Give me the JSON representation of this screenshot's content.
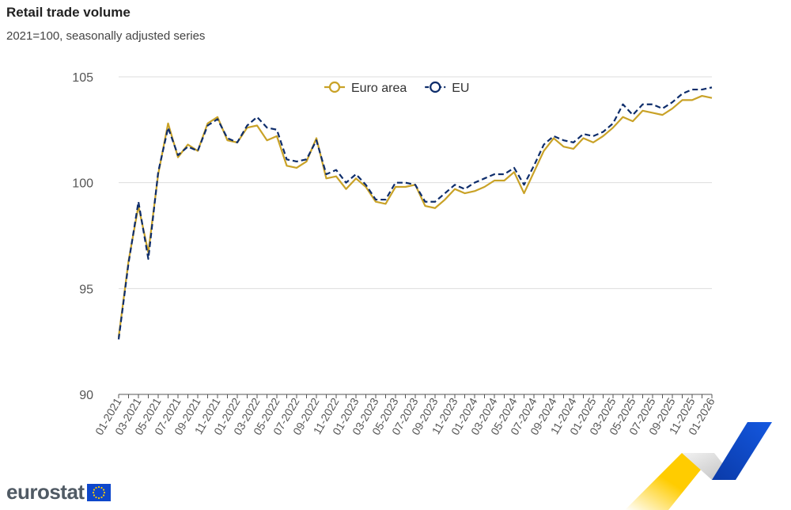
{
  "title": "Retail trade volume",
  "subtitle": "2021=100, seasonally adjusted series",
  "brand": {
    "name": "eurostat",
    "flag_icon": "eu-flag-icon"
  },
  "colors": {
    "euro_area": "#c9a227",
    "eu": "#0e2d6b",
    "grid": "#dddddd",
    "axis_text": "#555555",
    "deco_yellow": "#ffcc00",
    "deco_blue": "#0e47cb",
    "deco_grey": "#cfcfcf"
  },
  "chart_data": {
    "type": "line",
    "title": "Retail trade volume",
    "subtitle": "2021=100, seasonally adjusted series",
    "xlabel": "",
    "ylabel": "",
    "ylim": [
      90,
      105
    ],
    "yticks": [
      90,
      95,
      100,
      105
    ],
    "grid": true,
    "legend_position": "top-center",
    "x": [
      "01-2021",
      "02-2021",
      "03-2021",
      "04-2021",
      "05-2021",
      "06-2021",
      "07-2021",
      "08-2021",
      "09-2021",
      "10-2021",
      "11-2021",
      "12-2021",
      "01-2022",
      "02-2022",
      "03-2022",
      "04-2022",
      "05-2022",
      "06-2022",
      "07-2022",
      "08-2022",
      "09-2022",
      "10-2022",
      "11-2022",
      "12-2022",
      "01-2023",
      "02-2023",
      "03-2023",
      "04-2023",
      "05-2023",
      "06-2023",
      "07-2023",
      "08-2023",
      "09-2023",
      "10-2023",
      "11-2023",
      "12-2023",
      "01-2024",
      "02-2024",
      "03-2024",
      "04-2024",
      "05-2024",
      "06-2024",
      "07-2024",
      "08-2024",
      "09-2024",
      "10-2024",
      "11-2024",
      "12-2024",
      "01-2025",
      "02-2025",
      "03-2025",
      "04-2025",
      "05-2025",
      "06-2025",
      "07-2025",
      "08-2025",
      "09-2025",
      "10-2025",
      "11-2025",
      "12-2025",
      "01-2026"
    ],
    "xtick_labels": [
      "01-2021",
      "03-2021",
      "05-2021",
      "07-2021",
      "09-2021",
      "11-2021",
      "01-2022",
      "03-2022",
      "05-2022",
      "07-2022",
      "09-2022",
      "11-2022",
      "01-2023",
      "03-2023",
      "05-2023",
      "07-2023",
      "09-2023",
      "11-2023",
      "01-2024",
      "03-2024",
      "05-2024",
      "07-2024",
      "09-2024",
      "11-2024",
      "01-2025",
      "03-2025",
      "05-2025",
      "07-2025",
      "09-2025",
      "11-2025",
      "01-2026"
    ],
    "series": [
      {
        "name": "Euro area",
        "style": "solid",
        "values": [
          92.7,
          96.3,
          98.9,
          96.7,
          100.4,
          102.8,
          101.2,
          101.8,
          101.5,
          102.8,
          103.1,
          102.0,
          101.9,
          102.6,
          102.7,
          102.0,
          102.2,
          100.8,
          100.7,
          101.0,
          102.1,
          100.2,
          100.3,
          99.7,
          100.2,
          99.8,
          99.1,
          99.0,
          99.8,
          99.8,
          99.9,
          98.9,
          98.8,
          99.2,
          99.7,
          99.5,
          99.6,
          99.8,
          100.1,
          100.1,
          100.5,
          99.5,
          100.5,
          101.5,
          102.1,
          101.7,
          101.6,
          102.1,
          101.9,
          102.2,
          102.6,
          103.1,
          102.9,
          103.4,
          103.3,
          103.2,
          103.5,
          103.9,
          103.9,
          104.1,
          104.0
        ]
      },
      {
        "name": "EU",
        "style": "dashed",
        "values": [
          92.6,
          96.2,
          99.1,
          96.4,
          100.5,
          102.6,
          101.3,
          101.7,
          101.5,
          102.7,
          103.0,
          102.1,
          101.9,
          102.7,
          103.1,
          102.6,
          102.5,
          101.1,
          101.0,
          101.1,
          102.0,
          100.4,
          100.6,
          100.0,
          100.4,
          99.9,
          99.2,
          99.2,
          100.0,
          100.0,
          99.9,
          99.1,
          99.1,
          99.5,
          99.9,
          99.7,
          100.0,
          100.2,
          100.4,
          100.4,
          100.7,
          99.9,
          100.8,
          101.8,
          102.2,
          102.0,
          101.9,
          102.3,
          102.2,
          102.4,
          102.8,
          103.7,
          103.2,
          103.7,
          103.7,
          103.5,
          103.8,
          104.2,
          104.4,
          104.4,
          104.5
        ]
      }
    ]
  }
}
